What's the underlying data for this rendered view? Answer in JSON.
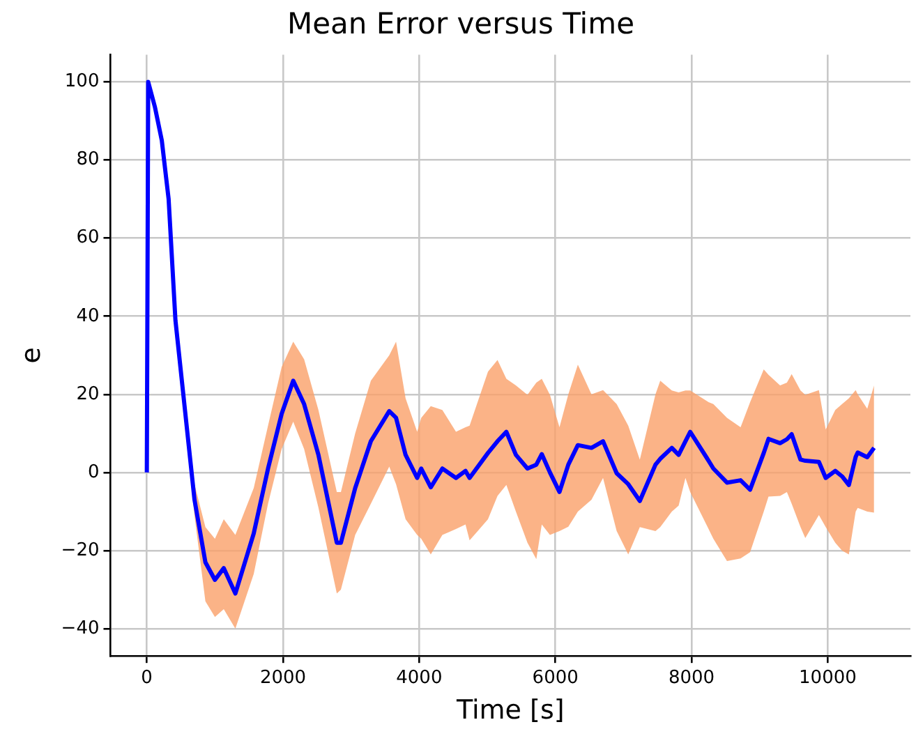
{
  "chart_data": {
    "type": "line",
    "title": "Mean Error versus Time",
    "xlabel": "Time [s]",
    "ylabel": "e",
    "x": [
      0,
      20,
      120,
      220,
      320,
      420,
      560,
      700,
      860,
      1000,
      1130,
      1300,
      1570,
      1780,
      1980,
      2150,
      2310,
      2520,
      2790,
      2850,
      3060,
      3290,
      3560,
      3660,
      3800,
      3970,
      4030,
      4170,
      4340,
      4540,
      4680,
      4740,
      5010,
      5150,
      5280,
      5420,
      5590,
      5720,
      5800,
      5920,
      6060,
      6190,
      6330,
      6530,
      6700,
      6900,
      7070,
      7240,
      7470,
      7540,
      7710,
      7810,
      7910,
      7980,
      8250,
      8320,
      8520,
      8720,
      8860,
      9060,
      9130,
      9300,
      9400,
      9470,
      9600,
      9670,
      9870,
      9970,
      10110,
      10210,
      10310,
      10410,
      10440,
      10580,
      10680
    ],
    "series": [
      {
        "color": "#0000ff",
        "values": [
          0,
          100,
          93.5,
          85,
          70,
          39,
          16,
          -7,
          -23,
          -27.5,
          -24.5,
          -31,
          -15.6,
          1,
          15,
          23.5,
          17.5,
          4.5,
          -18,
          -18,
          -4,
          8,
          15.7,
          14,
          4.5,
          -1.4,
          1,
          -3.8,
          1,
          -1.4,
          0.4,
          -1.4,
          5,
          8,
          10.4,
          4.5,
          1,
          2,
          4.7,
          0,
          -5,
          2,
          7,
          6.3,
          8,
          -0.2,
          -3,
          -7.3,
          2,
          3.5,
          6.3,
          4.5,
          8,
          10.4,
          3,
          1,
          -2.6,
          -2,
          -4.4,
          5,
          8.6,
          7.5,
          8.5,
          9.8,
          3.3,
          3,
          2.7,
          -1.4,
          0.4,
          -1,
          -3.2,
          4,
          5.1,
          3.9,
          6.3
        ],
        "lower": [
          null,
          100,
          93,
          84,
          69,
          37,
          13,
          -11,
          -33,
          -37,
          -35,
          -40,
          -26,
          -8,
          6,
          13,
          6,
          -9,
          -31,
          -30,
          -16,
          -8,
          1.5,
          -3,
          -12,
          -16,
          -17,
          -21,
          -16,
          -14.5,
          -13.3,
          -17.4,
          -12,
          -6,
          -3.2,
          -10,
          -18,
          -22.2,
          -13.3,
          -16,
          -15,
          -13.9,
          -10,
          -7,
          -1.4,
          -15,
          -21,
          -14,
          -15,
          -14,
          -10,
          -8.5,
          -1.4,
          -5,
          -14.5,
          -17,
          -22.7,
          -22,
          -20.4,
          -10,
          -6.2,
          -6,
          -5,
          -8,
          -14,
          -16.8,
          -10.9,
          -14,
          -18,
          -20,
          -21,
          -10,
          -9.1,
          -10,
          -10.3
        ],
        "upper": [
          null,
          100,
          94,
          86,
          71,
          41,
          19,
          -3,
          -14,
          -17,
          -12,
          -16,
          -4,
          12,
          27,
          33.5,
          29,
          16,
          -5,
          -5,
          10,
          23.5,
          30,
          33.5,
          19,
          10.4,
          14,
          17,
          16,
          10.4,
          11.6,
          12,
          25.8,
          28.8,
          24,
          22.3,
          19.9,
          23,
          24,
          19.9,
          11.6,
          20,
          27.6,
          20,
          21.1,
          17.5,
          12,
          3.3,
          20,
          23.5,
          21,
          20.5,
          21,
          21,
          18,
          17.5,
          14,
          11.6,
          18,
          26.4,
          25,
          22.3,
          23,
          25.2,
          21,
          19.9,
          21.1,
          11,
          16,
          17.5,
          19,
          21.1,
          20,
          16.3,
          22.3
        ]
      }
    ],
    "xlim": [
      -534,
      11214
    ],
    "ylim": [
      -47,
      107
    ],
    "xticks": [
      0,
      2000,
      4000,
      6000,
      8000,
      10000
    ],
    "yticks": [
      -40,
      -20,
      0,
      20,
      40,
      60,
      80,
      100
    ],
    "grid": true
  }
}
